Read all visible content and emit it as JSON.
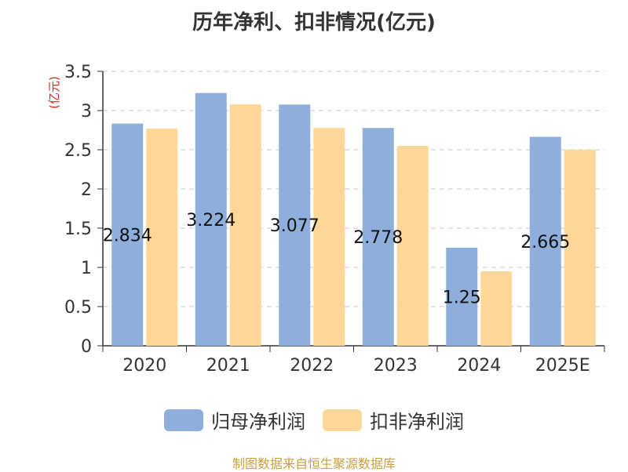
{
  "chart_data": {
    "type": "bar",
    "title": "历年净利、扣非情况(亿元)",
    "ylabel": "(亿元)",
    "xlabel": "",
    "categories": [
      "2020",
      "2021",
      "2022",
      "2023",
      "2024",
      "2025E"
    ],
    "series": [
      {
        "name": "归母净利润",
        "color": "#8eaedb",
        "values": [
          2.834,
          3.224,
          3.077,
          2.778,
          1.25,
          2.665
        ]
      },
      {
        "name": "扣非净利润",
        "color": "#ffd899",
        "values": [
          2.77,
          3.08,
          2.78,
          2.55,
          0.95,
          2.5
        ]
      }
    ],
    "data_labels": [
      "2.834",
      "3.224",
      "3.077",
      "2.778",
      "1.25",
      "2.665"
    ],
    "ylim": [
      0,
      3.5
    ],
    "yticks": [
      "0",
      "0.5",
      "1",
      "1.5",
      "2",
      "2.5",
      "3",
      "3.5"
    ],
    "grid": true,
    "legend_position": "bottom"
  },
  "source_text": "制图数据来自恒生聚源数据库"
}
